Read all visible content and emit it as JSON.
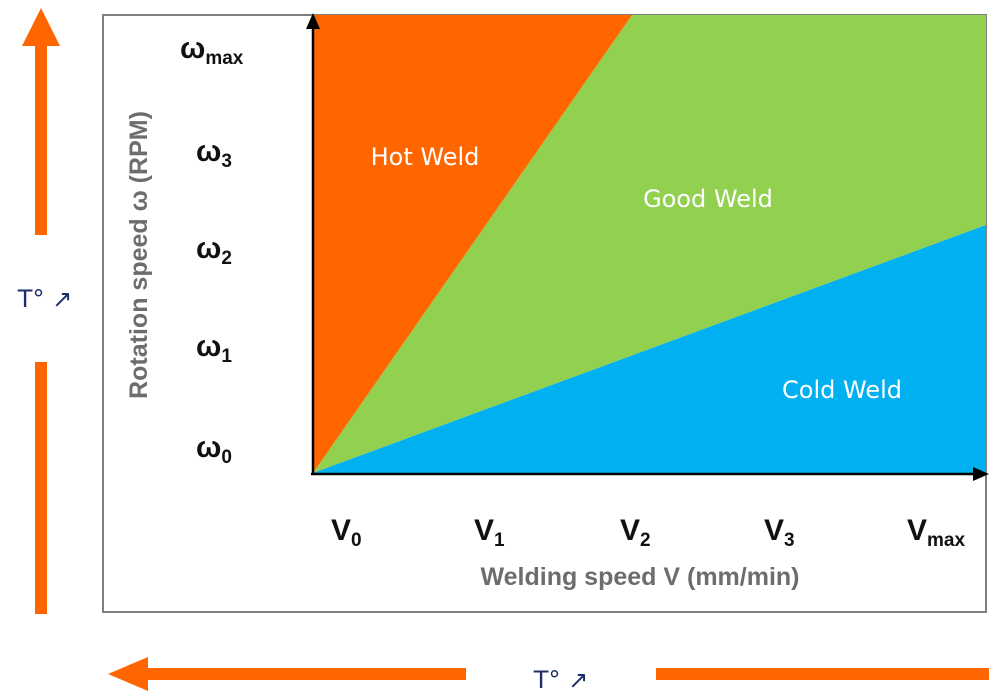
{
  "regions": {
    "hot": "Hot Weld",
    "good": "Good Weld",
    "cold": "Cold Weld"
  },
  "axes": {
    "x_title": "Welding speed V (mm/min)",
    "y_title": "Rotation speed ω (RPM)"
  },
  "x_ticks": [
    {
      "main": "V",
      "sub": "0"
    },
    {
      "main": "V",
      "sub": "1"
    },
    {
      "main": "V",
      "sub": "2"
    },
    {
      "main": "V",
      "sub": "3"
    },
    {
      "main": "V",
      "sub": "max"
    }
  ],
  "y_ticks": [
    {
      "main": "ω",
      "sub": "max"
    },
    {
      "main": "ω",
      "sub": "3"
    },
    {
      "main": "ω",
      "sub": "2"
    },
    {
      "main": "ω",
      "sub": "1"
    },
    {
      "main": "ω",
      "sub": "0"
    }
  ],
  "temperature": {
    "vertical_label": "T° ↗",
    "horizontal_label": "T° ↗"
  },
  "colors": {
    "hot": "#ff6600",
    "good": "#92d050",
    "cold": "#00b0f0",
    "arrow": "#ff6600",
    "frame": "#7f7f7f"
  }
}
